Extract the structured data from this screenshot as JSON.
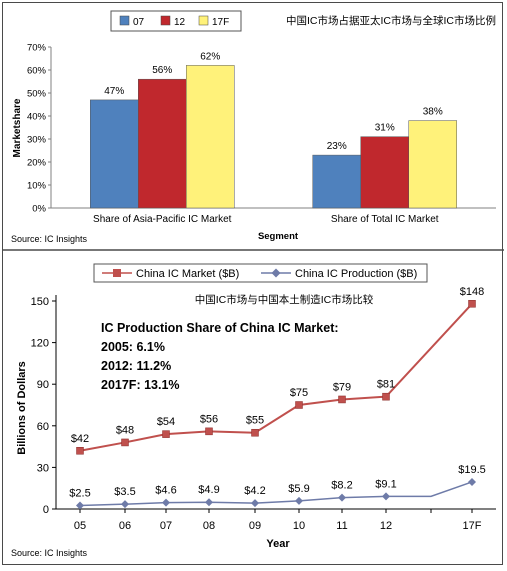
{
  "colors": {
    "s07": "#4F81BD",
    "s12": "#C0282D",
    "s17": "#FFF27A",
    "market": "#C0504D",
    "production": "#6E7BA8",
    "axis": "#808080",
    "grid": "#d9d9d9"
  },
  "chart_data": [
    {
      "type": "bar",
      "title": "中国IC市场占据亚太IC市场与全球IC市场比例",
      "xlabel": "Segment",
      "ylabel": "Marketshare",
      "categories": [
        "Share of Asia-Pacific IC Market",
        "Share of Total IC Market"
      ],
      "series": [
        {
          "name": "07",
          "values": [
            47,
            23
          ],
          "labels": [
            "47%",
            "23%"
          ]
        },
        {
          "name": "12",
          "values": [
            56,
            31
          ],
          "labels": [
            "56%",
            "31%"
          ]
        },
        {
          "name": "17F",
          "values": [
            62,
            38
          ],
          "labels": [
            "62%",
            "38%"
          ]
        }
      ],
      "yticks": [
        "0%",
        "10%",
        "20%",
        "30%",
        "40%",
        "50%",
        "60%",
        "70%"
      ],
      "ylim": [
        0,
        70
      ],
      "legend_position": "top",
      "source": "Source: IC Insights"
    },
    {
      "type": "line",
      "title": "中国IC市场与中国本土制造IC市场比较",
      "xlabel": "Year",
      "ylabel": "Billions of Dollars",
      "x": [
        "05",
        "06",
        "07",
        "08",
        "09",
        "10",
        "11",
        "12",
        "",
        "17F"
      ],
      "series": [
        {
          "name": "China IC Market ($B)",
          "values": [
            42,
            48,
            54,
            56,
            55,
            75,
            79,
            81,
            null,
            148
          ],
          "labels": [
            "$42",
            "$48",
            "$54",
            "$56",
            "$55",
            "$75",
            "$79",
            "$81",
            "",
            "$148"
          ]
        },
        {
          "name": "China IC Production ($B)",
          "values": [
            2.5,
            3.5,
            4.6,
            4.9,
            4.2,
            5.9,
            8.2,
            9.1,
            9.1,
            19.5
          ],
          "labels": [
            "$2.5",
            "$3.5",
            "$4.6",
            "$4.9",
            "$4.2",
            "$5.9",
            "$8.2",
            "$9.1",
            "",
            "$19.5"
          ]
        }
      ],
      "yticks": [
        "0",
        "30",
        "60",
        "90",
        "120",
        "150"
      ],
      "ylim": [
        0,
        150
      ],
      "legend_position": "top",
      "annotation": {
        "title": "IC Production Share of China IC Market:",
        "lines": [
          "2005: 6.1%",
          "2012: 11.2%",
          "2017F: 13.1%"
        ]
      },
      "source": "Source: IC Insights"
    }
  ]
}
